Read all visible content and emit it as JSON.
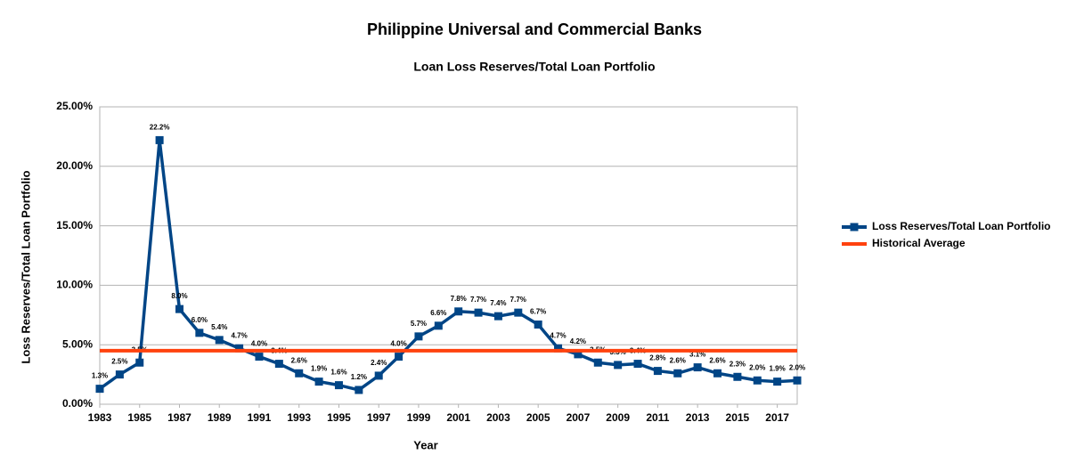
{
  "chart_data": {
    "type": "line",
    "title": "Philippine Universal and Commercial Banks",
    "subtitle": "Loan Loss Reserves/Total Loan Portfolio",
    "x_label": "Year",
    "y_label": "Loss Reserves/Total Loan Portfolio",
    "x": [
      1983,
      1984,
      1985,
      1986,
      1987,
      1988,
      1989,
      1990,
      1991,
      1992,
      1993,
      1994,
      1995,
      1996,
      1997,
      1998,
      1999,
      2000,
      2001,
      2002,
      2003,
      2004,
      2005,
      2006,
      2007,
      2008,
      2009,
      2010,
      2011,
      2012,
      2013,
      2014,
      2015,
      2016,
      2017,
      2018
    ],
    "xlim": [
      1983,
      2018
    ],
    "xticks": [
      1983,
      1985,
      1987,
      1989,
      1991,
      1993,
      1995,
      1997,
      1999,
      2001,
      2003,
      2005,
      2007,
      2009,
      2011,
      2013,
      2015,
      2017
    ],
    "ylim": [
      0,
      25
    ],
    "yticks": [
      {
        "value": 0,
        "label": "0.00%"
      },
      {
        "value": 5,
        "label": "5.00%"
      },
      {
        "value": 10,
        "label": "10.00%"
      },
      {
        "value": 15,
        "label": "15.00%"
      },
      {
        "value": 20,
        "label": "20.00%"
      },
      {
        "value": 25,
        "label": "25.00%"
      }
    ],
    "grid": true,
    "legend": "right",
    "series": [
      {
        "name": "Loss Reserves/Total Loan Portfolio",
        "color": "#004586",
        "values": [
          1.3,
          2.5,
          3.5,
          22.2,
          8.0,
          6.0,
          5.4,
          4.7,
          4.0,
          3.4,
          2.6,
          1.9,
          1.6,
          1.2,
          2.4,
          4.0,
          5.7,
          6.6,
          7.8,
          7.7,
          7.4,
          7.7,
          6.7,
          4.7,
          4.2,
          3.5,
          3.3,
          3.4,
          2.8,
          2.6,
          3.1,
          2.6,
          2.3,
          2.0,
          1.9,
          2.0
        ],
        "value_labels": [
          "1.3%",
          "2.5%",
          "3.5%",
          "22.2%",
          "8.0%",
          "6.0%",
          "5.4%",
          "4.7%",
          "4.0%",
          "3.4%",
          "2.6%",
          "1.9%",
          "1.6%",
          "1.2%",
          "2.4%",
          "4.0%",
          "5.7%",
          "6.6%",
          "7.8%",
          "7.7%",
          "7.4%",
          "7.7%",
          "6.7%",
          "4.7%",
          "4.2%",
          "3.5%",
          "3.3%",
          "3.4%",
          "2.8%",
          "2.6%",
          "3.1%",
          "2.6%",
          "2.3%",
          "2.0%",
          "1.9%",
          "2.0%"
        ]
      },
      {
        "name": "Historical Average",
        "color": "#ff420e",
        "values": [
          4.5,
          4.5,
          4.5,
          4.5,
          4.5,
          4.5,
          4.5,
          4.5,
          4.5,
          4.5,
          4.5,
          4.5,
          4.5,
          4.5,
          4.5,
          4.5,
          4.5,
          4.5,
          4.5,
          4.5,
          4.5,
          4.5,
          4.5,
          4.5,
          4.5,
          4.5,
          4.5,
          4.5,
          4.5,
          4.5,
          4.5,
          4.5,
          4.5,
          4.5,
          4.5,
          4.5
        ]
      }
    ]
  }
}
